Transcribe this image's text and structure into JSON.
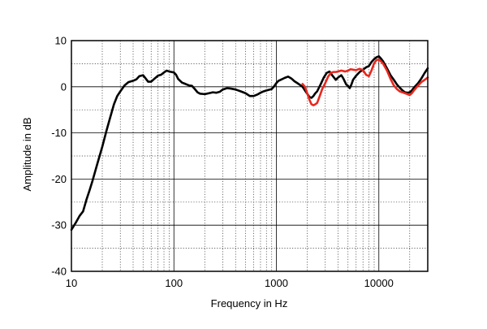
{
  "chart_data": {
    "type": "line",
    "title": "",
    "xlabel": "Frequency in Hz",
    "ylabel": "Amplitude in dB",
    "x_scale": "log",
    "xlim": [
      10,
      30000
    ],
    "ylim": [
      -40,
      10
    ],
    "x_ticks": [
      10,
      100,
      1000,
      10000
    ],
    "x_tick_labels": [
      "10",
      "100",
      "1000",
      "10000"
    ],
    "y_ticks": [
      10,
      0,
      -10,
      -20,
      -30,
      -40
    ],
    "y_tick_labels": [
      "10",
      "0",
      "-10",
      "-20",
      "-30",
      "-40"
    ],
    "grid": true,
    "legend": "none",
    "series": [
      {
        "color": "#000000",
        "points": [
          [
            10,
            -31
          ],
          [
            11,
            -29.5
          ],
          [
            12,
            -28
          ],
          [
            13,
            -27
          ],
          [
            14,
            -24.5
          ],
          [
            15,
            -22.5
          ],
          [
            16,
            -20.5
          ],
          [
            18,
            -16.5
          ],
          [
            20,
            -13
          ],
          [
            22,
            -9.5
          ],
          [
            24,
            -6.5
          ],
          [
            26,
            -3.8
          ],
          [
            28,
            -2
          ],
          [
            30,
            -1
          ],
          [
            33,
            0.3
          ],
          [
            36,
            1
          ],
          [
            40,
            1.3
          ],
          [
            43,
            1.6
          ],
          [
            46,
            2.3
          ],
          [
            50,
            2.5
          ],
          [
            53,
            1.8
          ],
          [
            56,
            1.1
          ],
          [
            60,
            1.1
          ],
          [
            65,
            1.8
          ],
          [
            70,
            2.4
          ],
          [
            75,
            2.6
          ],
          [
            80,
            3.1
          ],
          [
            85,
            3.5
          ],
          [
            90,
            3.3
          ],
          [
            95,
            3.2
          ],
          [
            100,
            3.1
          ],
          [
            105,
            2.6
          ],
          [
            110,
            1.7
          ],
          [
            120,
            0.9
          ],
          [
            130,
            0.6
          ],
          [
            140,
            0.3
          ],
          [
            150,
            0.2
          ],
          [
            160,
            -0.5
          ],
          [
            170,
            -1.2
          ],
          [
            180,
            -1.5
          ],
          [
            200,
            -1.6
          ],
          [
            220,
            -1.4
          ],
          [
            240,
            -1.2
          ],
          [
            260,
            -1.3
          ],
          [
            280,
            -1.1
          ],
          [
            300,
            -0.6
          ],
          [
            330,
            -0.3
          ],
          [
            360,
            -0.4
          ],
          [
            400,
            -0.6
          ],
          [
            450,
            -1.0
          ],
          [
            500,
            -1.4
          ],
          [
            550,
            -2.0
          ],
          [
            600,
            -2.0
          ],
          [
            650,
            -1.7
          ],
          [
            700,
            -1.3
          ],
          [
            750,
            -1.0
          ],
          [
            800,
            -0.8
          ],
          [
            900,
            -0.5
          ],
          [
            950,
            0.1
          ],
          [
            1000,
            0.8
          ],
          [
            1050,
            1.3
          ],
          [
            1100,
            1.5
          ],
          [
            1200,
            1.9
          ],
          [
            1300,
            2.2
          ],
          [
            1400,
            1.8
          ],
          [
            1500,
            1.2
          ],
          [
            1600,
            0.8
          ],
          [
            1700,
            0.4
          ],
          [
            1800,
            0
          ],
          [
            1900,
            -0.8
          ],
          [
            2000,
            -1.5
          ],
          [
            2100,
            -2.2
          ],
          [
            2200,
            -2.4
          ],
          [
            2300,
            -2.0
          ],
          [
            2400,
            -1.4
          ],
          [
            2500,
            -1.0
          ],
          [
            2700,
            0.5
          ],
          [
            2900,
            2.0
          ],
          [
            3100,
            3.0
          ],
          [
            3300,
            3.3
          ],
          [
            3500,
            2.5
          ],
          [
            3800,
            1.5
          ],
          [
            4000,
            2.0
          ],
          [
            4300,
            2.5
          ],
          [
            4500,
            1.8
          ],
          [
            4800,
            0.5
          ],
          [
            5000,
            0.2
          ],
          [
            5200,
            -0.3
          ],
          [
            5400,
            0.5
          ],
          [
            5600,
            1.5
          ],
          [
            6000,
            2.4
          ],
          [
            6500,
            3.2
          ],
          [
            7000,
            3.7
          ],
          [
            7500,
            4.2
          ],
          [
            8000,
            4.5
          ],
          [
            8500,
            5.4
          ],
          [
            9000,
            6.0
          ],
          [
            9500,
            6.4
          ],
          [
            10000,
            6.6
          ],
          [
            10500,
            6.1
          ],
          [
            11000,
            5.5
          ],
          [
            12000,
            4.0
          ],
          [
            13000,
            2.5
          ],
          [
            14000,
            1.5
          ],
          [
            15000,
            0.5
          ],
          [
            16000,
            -0.2
          ],
          [
            17000,
            -0.8
          ],
          [
            18000,
            -1.2
          ],
          [
            19000,
            -1.3
          ],
          [
            20000,
            -1.2
          ],
          [
            21000,
            -0.8
          ],
          [
            22000,
            -0.2
          ],
          [
            24000,
            0.7
          ],
          [
            26000,
            1.8
          ],
          [
            28000,
            3.0
          ],
          [
            30000,
            4.0
          ]
        ]
      },
      {
        "color": "#e8281e",
        "points": [
          [
            1800,
            0.6
          ],
          [
            1900,
            0
          ],
          [
            2000,
            -1.4
          ],
          [
            2100,
            -2.8
          ],
          [
            2200,
            -3.8
          ],
          [
            2300,
            -4.0
          ],
          [
            2400,
            -3.8
          ],
          [
            2500,
            -3.5
          ],
          [
            2600,
            -2.5
          ],
          [
            2700,
            -1.5
          ],
          [
            2800,
            -0.5
          ],
          [
            3000,
            0.8
          ],
          [
            3200,
            2.2
          ],
          [
            3400,
            3.0
          ],
          [
            3600,
            3.2
          ],
          [
            3800,
            3.2
          ],
          [
            4000,
            3.3
          ],
          [
            4300,
            3.5
          ],
          [
            4700,
            3.3
          ],
          [
            5000,
            3.5
          ],
          [
            5300,
            3.8
          ],
          [
            5600,
            3.7
          ],
          [
            6000,
            3.6
          ],
          [
            6500,
            3.9
          ],
          [
            7000,
            3.6
          ],
          [
            7500,
            2.6
          ],
          [
            8000,
            2.3
          ],
          [
            8500,
            3.6
          ],
          [
            9000,
            5.1
          ],
          [
            9500,
            5.8
          ],
          [
            10000,
            5.9
          ],
          [
            10500,
            5.5
          ],
          [
            11000,
            5.0
          ],
          [
            12000,
            3.5
          ],
          [
            13000,
            1.7
          ],
          [
            14000,
            0.3
          ],
          [
            15000,
            -0.5
          ],
          [
            16000,
            -1.0
          ],
          [
            17000,
            -1.2
          ],
          [
            18000,
            -1.4
          ],
          [
            19000,
            -1.6
          ],
          [
            20000,
            -1.8
          ],
          [
            21000,
            -1.4
          ],
          [
            22000,
            -0.8
          ],
          [
            24000,
            0.2
          ],
          [
            26000,
            1.0
          ],
          [
            28000,
            1.5
          ],
          [
            30000,
            2.0
          ]
        ]
      }
    ]
  }
}
